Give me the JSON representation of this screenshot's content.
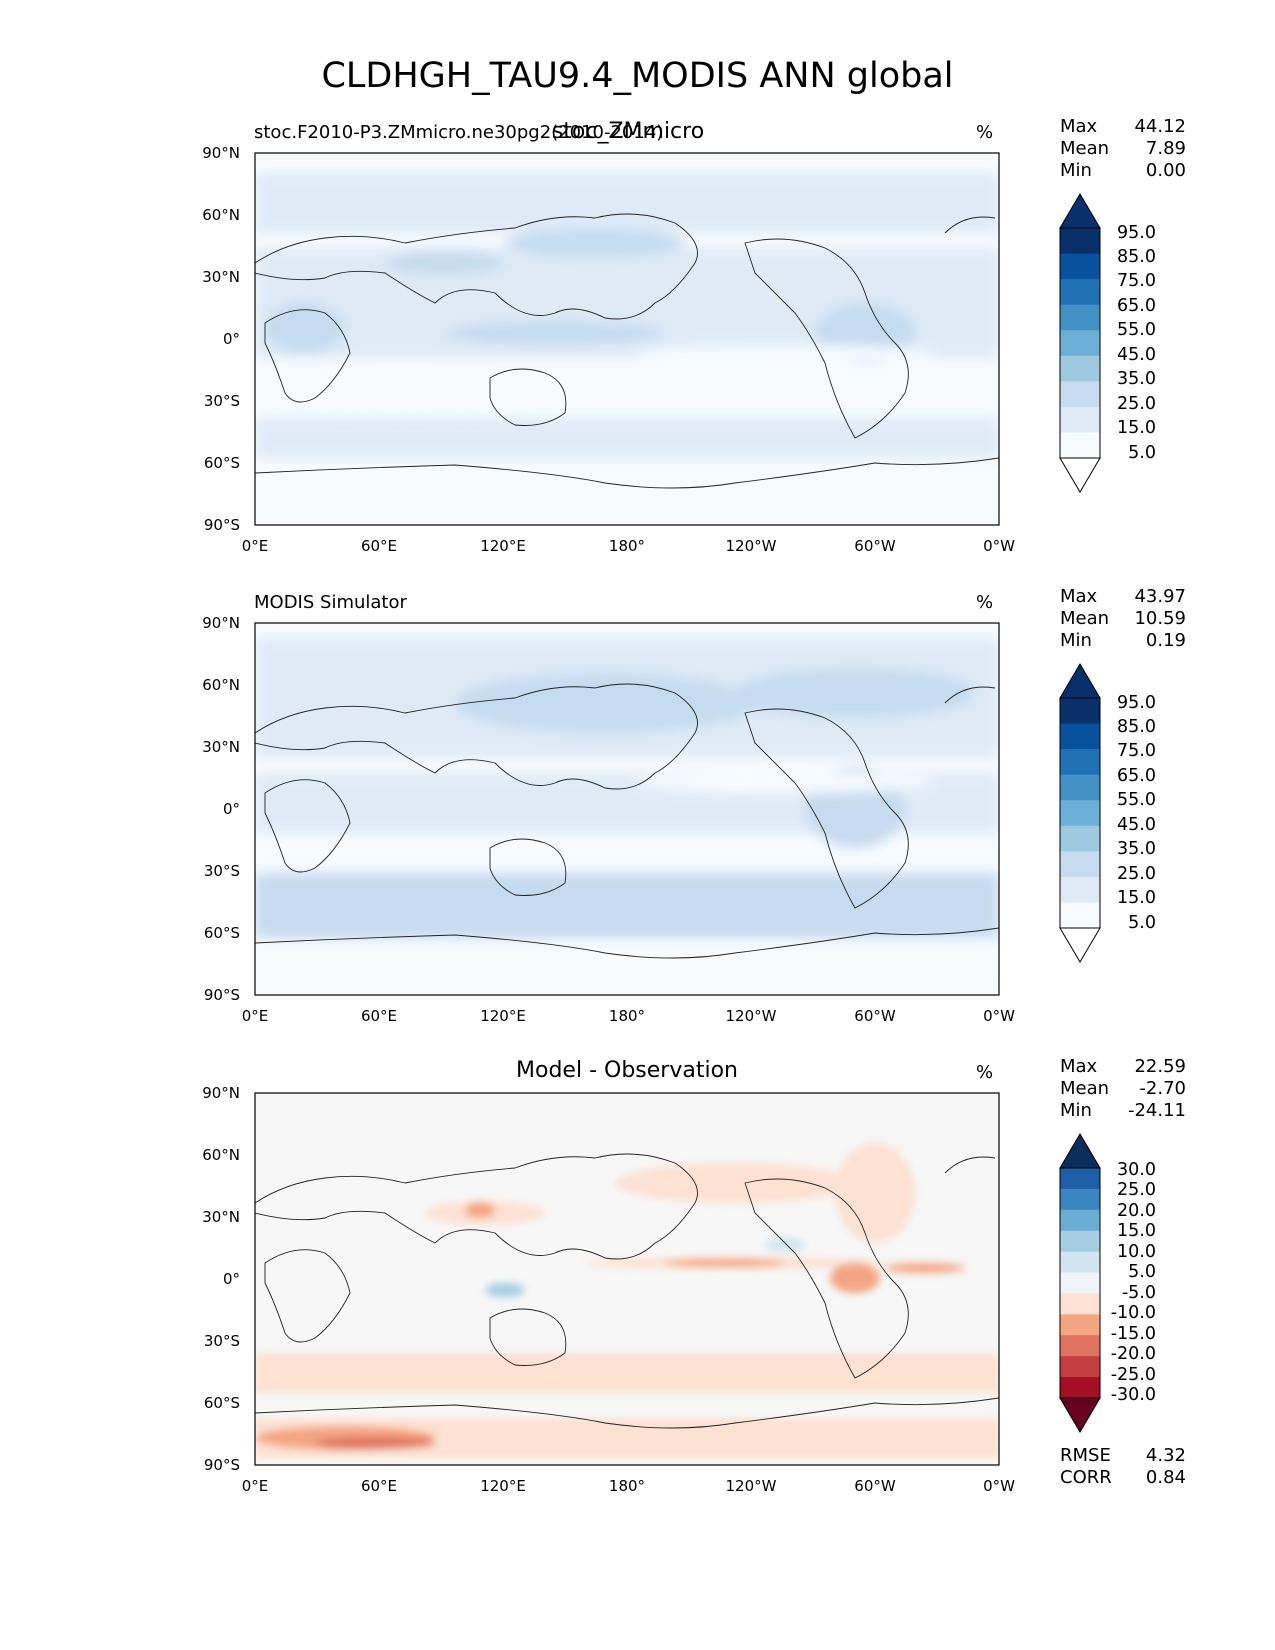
{
  "figure": {
    "title": "CLDHGH_TAU9.4_MODIS ANN global"
  },
  "chart_data": [
    {
      "type": "heatmap",
      "panel": "test",
      "title_left": "stoc.F2010-P3.ZMmicro.ne30pg2(2010-2014)",
      "title_center_overlap": "stoc_ZMmicro",
      "units": "%",
      "stats": {
        "Max": "44.12",
        "Mean": "7.89",
        "Min": "0.00"
      },
      "colorbar": {
        "levels": [
          "95.0",
          "85.0",
          "75.0",
          "65.0",
          "55.0",
          "45.0",
          "35.0",
          "25.0",
          "15.0",
          "5.0"
        ],
        "colors": [
          "#08306b",
          "#08519c",
          "#2171b5",
          "#4292c6",
          "#6baed6",
          "#9ecae1",
          "#c6dbef",
          "#deebf7",
          "#f7fbff"
        ]
      },
      "xticks": [
        "0°E",
        "60°E",
        "120°E",
        "180°",
        "120°W",
        "60°W",
        "0°W"
      ],
      "yticks": [
        "90°N",
        "60°N",
        "30°N",
        "0°",
        "30°S",
        "60°S",
        "90°S"
      ]
    },
    {
      "type": "heatmap",
      "panel": "reference",
      "title_left": "MODIS Simulator",
      "units": "%",
      "stats": {
        "Max": "43.97",
        "Mean": "10.59",
        "Min": "0.19"
      },
      "colorbar": {
        "levels": [
          "95.0",
          "85.0",
          "75.0",
          "65.0",
          "55.0",
          "45.0",
          "35.0",
          "25.0",
          "15.0",
          "5.0"
        ],
        "colors": [
          "#08306b",
          "#08519c",
          "#2171b5",
          "#4292c6",
          "#6baed6",
          "#9ecae1",
          "#c6dbef",
          "#deebf7",
          "#f7fbff"
        ]
      },
      "xticks": [
        "0°E",
        "60°E",
        "120°E",
        "180°",
        "120°W",
        "60°W",
        "0°W"
      ],
      "yticks": [
        "90°N",
        "60°N",
        "30°N",
        "0°",
        "30°S",
        "60°S",
        "90°S"
      ]
    },
    {
      "type": "heatmap",
      "panel": "difference",
      "title_center": "Model - Observation",
      "units": "%",
      "stats": {
        "Max": "22.59",
        "Mean": "-2.70",
        "Min": "-24.11"
      },
      "metrics": {
        "RMSE": "4.32",
        "CORR": "0.84"
      },
      "colorbar": {
        "levels": [
          "30.0",
          "25.0",
          "20.0",
          "15.0",
          "10.0",
          "5.0",
          "-5.0",
          "-10.0",
          "-15.0",
          "-20.0",
          "-25.0",
          "-30.0"
        ],
        "colors": [
          "#1f5fa6",
          "#3b86c0",
          "#6aaed6",
          "#a6cee3",
          "#d1e5f0",
          "#eef4f8",
          "#fde1d2",
          "#f4a582",
          "#e0735f",
          "#c33e3e",
          "#a50f26"
        ]
      },
      "xticks": [
        "0°E",
        "60°E",
        "120°E",
        "180°",
        "120°W",
        "60°W",
        "0°W"
      ],
      "yticks": [
        "90°N",
        "60°N",
        "30°N",
        "0°",
        "30°S",
        "60°S",
        "90°S"
      ]
    }
  ]
}
